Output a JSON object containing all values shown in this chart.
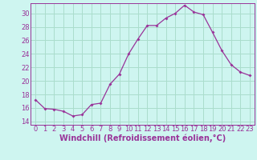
{
  "x": [
    0,
    1,
    2,
    3,
    4,
    5,
    6,
    7,
    8,
    9,
    10,
    11,
    12,
    13,
    14,
    15,
    16,
    17,
    18,
    19,
    20,
    21,
    22,
    23
  ],
  "y": [
    17.2,
    15.9,
    15.8,
    15.5,
    14.8,
    15.0,
    16.5,
    16.7,
    19.5,
    21.0,
    24.0,
    26.2,
    28.2,
    28.2,
    29.3,
    30.0,
    31.2,
    30.2,
    29.8,
    27.2,
    24.5,
    22.4,
    21.3,
    20.8
  ],
  "ylim": [
    13.5,
    31.5
  ],
  "yticks": [
    14,
    16,
    18,
    20,
    22,
    24,
    26,
    28,
    30
  ],
  "xticks": [
    0,
    1,
    2,
    3,
    4,
    5,
    6,
    7,
    8,
    9,
    10,
    11,
    12,
    13,
    14,
    15,
    16,
    17,
    18,
    19,
    20,
    21,
    22,
    23
  ],
  "xlabel": "Windchill (Refroidissement éolien,°C)",
  "line_color": "#993399",
  "marker": "D",
  "marker_size": 2.0,
  "background_color": "#cef5f0",
  "grid_color": "#aaddcc",
  "tick_color": "#993399",
  "xlabel_color": "#993399",
  "label_fontsize": 6,
  "xlabel_fontsize": 7
}
